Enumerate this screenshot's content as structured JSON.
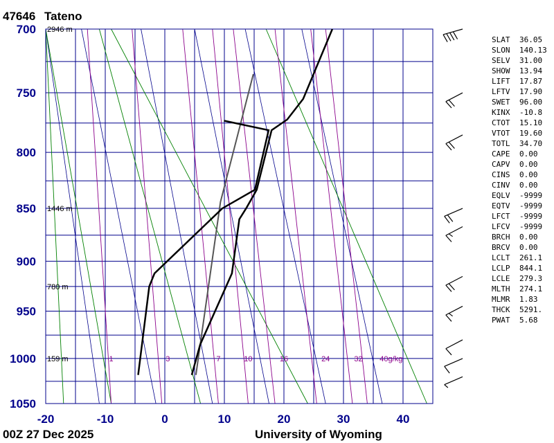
{
  "station": {
    "id": "47646",
    "name": "Tateno"
  },
  "footer": {
    "time": "00Z 27 Dec 2025",
    "source": "University of Wyoming"
  },
  "indices": [
    {
      "k": "SLAT",
      "v": "36.05"
    },
    {
      "k": "SLON",
      "v": "140.13"
    },
    {
      "k": "SELV",
      "v": "31.00"
    },
    {
      "k": "SHOW",
      "v": "13.94"
    },
    {
      "k": "LIFT",
      "v": "17.87"
    },
    {
      "k": "LFTV",
      "v": "17.90"
    },
    {
      "k": "SWET",
      "v": "96.00"
    },
    {
      "k": "KINX",
      "v": "-10.8"
    },
    {
      "k": "CTOT",
      "v": "15.10"
    },
    {
      "k": "VTOT",
      "v": "19.60"
    },
    {
      "k": "TOTL",
      "v": "34.70"
    },
    {
      "k": "CAPE",
      "v": "0.00"
    },
    {
      "k": "CAPV",
      "v": "0.00"
    },
    {
      "k": "CINS",
      "v": "0.00"
    },
    {
      "k": "CINV",
      "v": "0.00"
    },
    {
      "k": "EQLV",
      "v": "-9999"
    },
    {
      "k": "EQTV",
      "v": "-9999"
    },
    {
      "k": "LFCT",
      "v": "-9999"
    },
    {
      "k": "LFCV",
      "v": "-9999"
    },
    {
      "k": "BRCH",
      "v": "0.00"
    },
    {
      "k": "BRCV",
      "v": "0.00"
    },
    {
      "k": "LCLT",
      "v": "261.1"
    },
    {
      "k": "LCLP",
      "v": "844.1"
    },
    {
      "k": "LCLE",
      "v": "279.3"
    },
    {
      "k": "MLTH",
      "v": "274.1"
    },
    {
      "k": "MLMR",
      "v": "1.83"
    },
    {
      "k": "THCK",
      "v": "5291."
    },
    {
      "k": "PWAT",
      "v": "5.68"
    }
  ],
  "colors": {
    "frame": "#00008b",
    "grid": "#00008b",
    "skew_isotherm": "#00008b",
    "dry_adiabat": "#008000",
    "mixing_ratio": "#8b008b",
    "profile": "#000000",
    "parcel": "#555555"
  },
  "chart_data": {
    "type": "skew-t sounding",
    "y_axis": {
      "quantity": "pressure (hPa)",
      "range": [
        1050,
        700
      ],
      "ticks": [
        700,
        750,
        800,
        850,
        900,
        950,
        1000,
        1050
      ]
    },
    "x_axis": {
      "quantity": "temperature (C)",
      "range": [
        -20,
        45
      ],
      "ticks": [
        -20,
        -10,
        0,
        10,
        20,
        30,
        40
      ]
    },
    "height_labels": [
      {
        "p": 700,
        "text": "2946 m"
      },
      {
        "p": 850,
        "text": "1446 m"
      },
      {
        "p": 925,
        "text": "780 m"
      },
      {
        "p": 1000,
        "text": "159 m"
      }
    ],
    "mixing_ratio_labels": [
      {
        "t": -9,
        "text": "1"
      },
      {
        "t": 0.5,
        "text": "3"
      },
      {
        "t": 9,
        "text": "7"
      },
      {
        "t": 14,
        "text": "10"
      },
      {
        "t": 20,
        "text": "16"
      },
      {
        "t": 27,
        "text": "24"
      },
      {
        "t": 32.5,
        "text": "32"
      },
      {
        "t": 38,
        "text": "40g/kg"
      }
    ],
    "mixing_ratio_lines": [
      {
        "x_bottom": -9,
        "x_top": -13
      },
      {
        "x_bottom": -0.5,
        "x_top": -5.5
      },
      {
        "x_bottom": 9,
        "x_top": 3
      },
      {
        "x_bottom": 14,
        "x_top": 8
      },
      {
        "x_bottom": 18.5,
        "x_top": 11.5
      },
      {
        "x_bottom": 25.5,
        "x_top": 18.5
      },
      {
        "x_bottom": 31.5,
        "x_top": 24.5
      },
      {
        "x_bottom": 34,
        "x_top": 27
      }
    ],
    "dry_adiabat_lines": [
      {
        "x_bottom": -17,
        "x_top": -20
      },
      {
        "x_bottom": -9,
        "x_top": -20
      },
      {
        "x_bottom": 6,
        "x_top": -11
      },
      {
        "x_bottom": 24,
        "x_top": -9
      },
      {
        "x_bottom": 44,
        "x_top": 17
      }
    ],
    "skew_isotherm_lines": [
      {
        "x_bottom": -11,
        "x_top": -20
      },
      {
        "x_bottom": -1.5,
        "x_top": -14
      },
      {
        "x_bottom": 8,
        "x_top": -4
      },
      {
        "x_bottom": 17.5,
        "x_top": 5
      },
      {
        "x_bottom": 27,
        "x_top": 13.5
      },
      {
        "x_bottom": 36.5,
        "x_top": 23
      }
    ],
    "temperature_profile": [
      {
        "p": 1018,
        "t": 1.5
      },
      {
        "p": 985,
        "t": -0.3
      },
      {
        "p": 912,
        "t": -2.5
      },
      {
        "p": 860,
        "t": -7
      },
      {
        "p": 850,
        "t": -7
      },
      {
        "p": 833,
        "t": -7.2
      },
      {
        "p": 781,
        "t": -11
      },
      {
        "p": 772,
        "t": -9.5
      },
      {
        "p": 755,
        "t": -9
      },
      {
        "p": 700,
        "t": -11.5
      }
    ],
    "dewpoint_profile": [
      {
        "p": 1018,
        "t": -7.5
      },
      {
        "p": 925,
        "t": -15
      },
      {
        "p": 912,
        "t": -15.5
      },
      {
        "p": 850,
        "t": -11
      },
      {
        "p": 833,
        "t": -7.5
      },
      {
        "p": 781,
        "t": -11.5
      },
      {
        "p": 773,
        "t": -20
      }
    ],
    "parcel_path": [
      {
        "p": 1018,
        "t": 2.2
      },
      {
        "p": 844,
        "t": -12
      },
      {
        "p": 735,
        "t": -20
      }
    ],
    "wind_barbs": [
      {
        "p": 700,
        "dir": 270,
        "spd": 40
      },
      {
        "p": 750,
        "dir": 300,
        "spd": 20
      },
      {
        "p": 785,
        "dir": 300,
        "spd": 20
      },
      {
        "p": 850,
        "dir": 290,
        "spd": 20
      },
      {
        "p": 867,
        "dir": 300,
        "spd": 15
      },
      {
        "p": 915,
        "dir": 300,
        "spd": 20
      },
      {
        "p": 945,
        "dir": 300,
        "spd": 15
      },
      {
        "p": 980,
        "dir": 300,
        "spd": 10
      },
      {
        "p": 1000,
        "dir": 290,
        "spd": 10
      },
      {
        "p": 1020,
        "dir": 290,
        "spd": 5
      }
    ]
  }
}
